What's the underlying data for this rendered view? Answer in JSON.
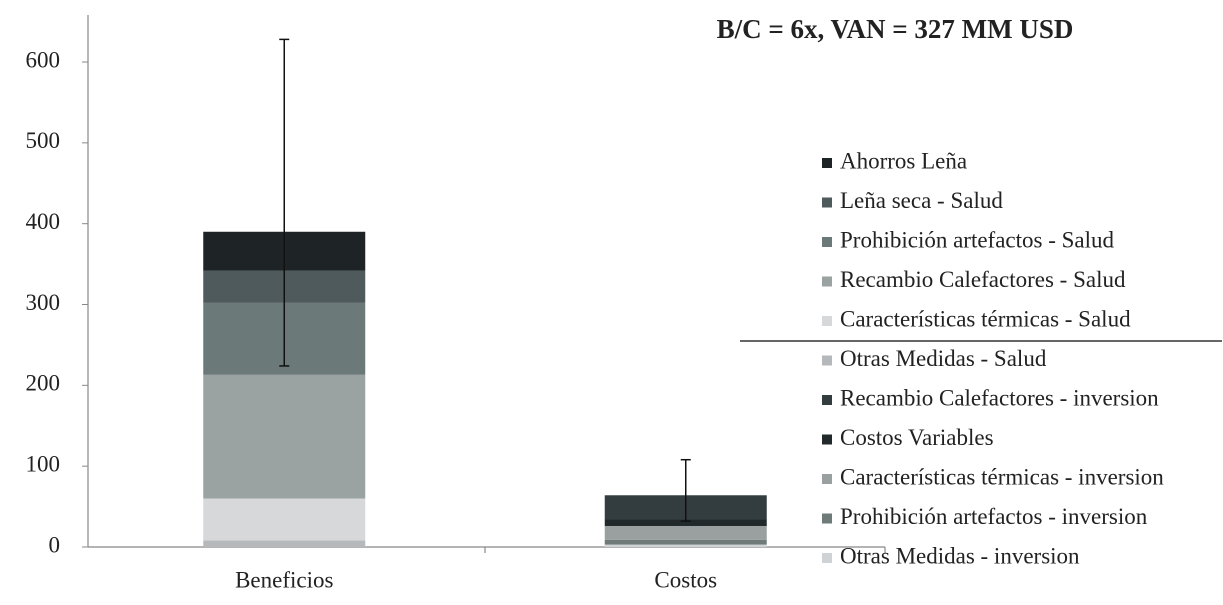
{
  "chart_data": {
    "type": "stacked_bar",
    "annotation": "B/C = 6x, VAN = 327 MM USD",
    "categories": [
      "Beneficios",
      "Costos"
    ],
    "series": [
      {
        "name": "Ahorros Leña",
        "color": "#1e2326",
        "values": [
          48,
          null
        ]
      },
      {
        "name": "Leña seca - Salud",
        "color": "#4f5a5c",
        "values": [
          40,
          null
        ]
      },
      {
        "name": "Prohibición artefactos - Salud",
        "color": "#6b7a78",
        "values": [
          89,
          null
        ]
      },
      {
        "name": "Recambio Calefactores - Salud",
        "color": "#9aa3a2",
        "values": [
          153,
          null
        ]
      },
      {
        "name": "Características térmicas - Salud",
        "color": "#d6d8da",
        "values": [
          52,
          null
        ]
      },
      {
        "name": "Otras Medidas - Salud",
        "color": "#b5b9bb",
        "values": [
          8,
          null
        ]
      },
      {
        "name": "Recambio Calefactores - inversion",
        "color": "#333c3e",
        "values": [
          null,
          30
        ]
      },
      {
        "name": "Costos Variables",
        "color": "#22292b",
        "values": [
          null,
          8
        ]
      },
      {
        "name": "Características térmicas - inversion",
        "color": "#9aa09f",
        "values": [
          null,
          17
        ]
      },
      {
        "name": "Prohibición artefactos - inversion",
        "color": "#6f7b79",
        "values": [
          null,
          6
        ]
      },
      {
        "name": "Otras Medidas - inversion",
        "color": "#d0d3d6",
        "values": [
          null,
          3
        ]
      }
    ],
    "error_minus": [
      166,
      32
    ],
    "error_plus": [
      238,
      44
    ],
    "ylim": [
      0,
      650
    ],
    "yticks": [
      0,
      100,
      200,
      300,
      400,
      500,
      600
    ],
    "grid": false,
    "legend": "right"
  }
}
